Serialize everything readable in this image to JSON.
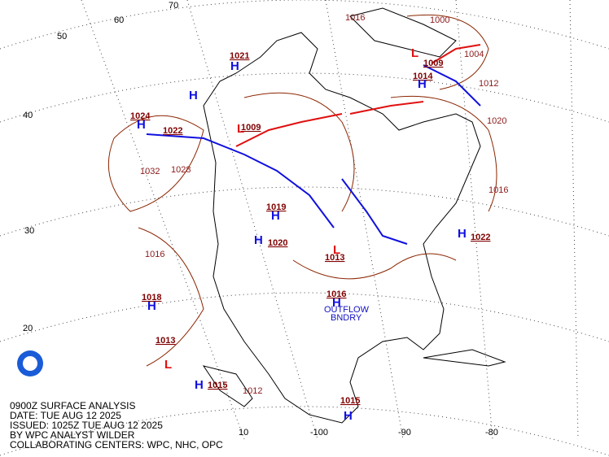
{
  "caption": [
    "0900Z SURFACE ANALYSIS",
    "DATE: TUE AUG 12 2025",
    "ISSUED: 1025Z TUE AUG 12 2025",
    "BY WPC ANALYST WILDER",
    "COLLABORATING CENTERS: WPC, NHC, OPC"
  ],
  "latitude_labels": [
    "50",
    "40",
    "30",
    "20",
    "10"
  ],
  "longitude_labels": [
    "60",
    "70",
    "-100",
    "-90",
    "-80"
  ],
  "pressure_centers": [
    {
      "letter": "H",
      "pressure": "1024"
    },
    {
      "letter": "H",
      "pressure": "1022"
    },
    {
      "letter": "H",
      "pressure": "1018"
    },
    {
      "letter": "L",
      "pressure": "1013"
    },
    {
      "letter": "H",
      "pressure": "1015"
    },
    {
      "letter": "H",
      "pressure": "1021"
    },
    {
      "letter": "L",
      "pressure": "1009"
    },
    {
      "letter": "H",
      "pressure": "1014"
    },
    {
      "letter": "L",
      "pressure": "1009"
    },
    {
      "letter": "H",
      "pressure": "1022"
    },
    {
      "letter": "H",
      "pressure": "1016"
    },
    {
      "letter": "H",
      "pressure": "1015"
    },
    {
      "letter": "H",
      "pressure": "1019"
    },
    {
      "letter": "L",
      "pressure": "1013"
    },
    {
      "letter": "H",
      "pressure": "1020"
    }
  ],
  "isobar_labels": [
    "1032",
    "1028",
    "1016",
    "1020",
    "1016",
    "1012",
    "1012",
    "1004",
    "1000",
    "1016"
  ],
  "annotations": [
    "OUTFLOW",
    "BNDRY"
  ]
}
